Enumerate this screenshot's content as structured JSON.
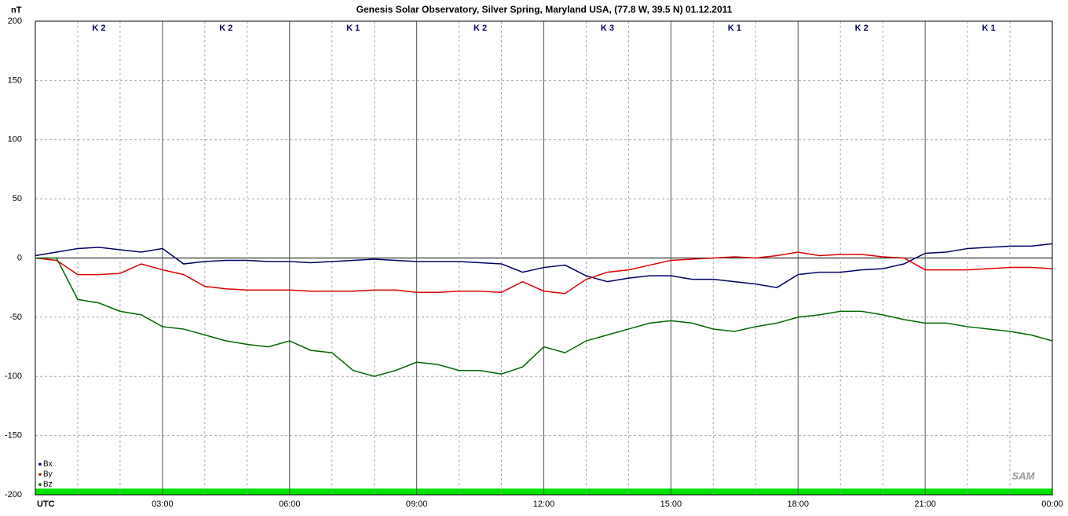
{
  "chart_data": {
    "type": "line",
    "title": "Genesis Solar Observatory, Silver Spring, Maryland USA, (77.8 W, 39.5 N)  01.12.2011",
    "y_label": "nT",
    "logo": "SAM",
    "annotations": [
      "K 2",
      "K 2",
      "K 1",
      "K 2",
      "K 3",
      "K 1",
      "K 2",
      "K 1"
    ],
    "x": [
      0,
      0.5,
      1,
      1.5,
      2,
      2.5,
      3,
      3.5,
      4,
      4.5,
      5,
      5.5,
      6,
      6.5,
      7,
      7.5,
      8,
      8.5,
      9,
      9.5,
      10,
      10.5,
      11,
      11.5,
      12,
      12.5,
      13,
      13.5,
      14,
      14.5,
      15,
      15.5,
      16,
      16.5,
      17,
      17.5,
      18,
      18.5,
      19,
      19.5,
      20,
      20.5,
      21,
      21.5,
      22,
      22.5,
      23,
      23.5,
      24
    ],
    "series": [
      {
        "name": "Bx",
        "color": "#000066",
        "values": [
          2,
          5,
          8,
          9,
          7,
          5,
          8,
          -5,
          -3,
          -2,
          -2,
          -3,
          -3,
          -4,
          -3,
          -2,
          -1,
          -2,
          -3,
          -3,
          -3,
          -4,
          -5,
          -12,
          -8,
          -6,
          -15,
          -20,
          -17,
          -15,
          -15,
          -18,
          -18,
          -20,
          -22,
          -25,
          -14,
          -12,
          -12,
          -10,
          -9,
          -5,
          4,
          5,
          8,
          9,
          10,
          10,
          12
        ]
      },
      {
        "name": "By",
        "color": "#dd0000",
        "values": [
          0,
          -2,
          -14,
          -14,
          -13,
          -5,
          -10,
          -14,
          -24,
          -26,
          -27,
          -27,
          -27,
          -28,
          -28,
          -28,
          -27,
          -27,
          -29,
          -29,
          -28,
          -28,
          -29,
          -20,
          -28,
          -30,
          -18,
          -12,
          -10,
          -6,
          -2,
          -1,
          0,
          1,
          0,
          2,
          5,
          2,
          3,
          3,
          1,
          0,
          -10,
          -10,
          -10,
          -9,
          -8,
          -8,
          -9
        ]
      },
      {
        "name": "Bz",
        "color": "#006600",
        "values": [
          0,
          0,
          -35,
          -38,
          -45,
          -48,
          -58,
          -60,
          -65,
          -70,
          -73,
          -75,
          -70,
          -78,
          -80,
          -95,
          -100,
          -95,
          -88,
          -90,
          -95,
          -95,
          -98,
          -92,
          -75,
          -80,
          -70,
          -65,
          -60,
          -55,
          -53,
          -55,
          -60,
          -62,
          -58,
          -55,
          -50,
          -48,
          -45,
          -45,
          -48,
          -52,
          -55,
          -55,
          -58,
          -60,
          -62,
          -65,
          -70
        ]
      }
    ],
    "xlim": [
      0,
      24
    ],
    "xticks": [
      {
        "value": 0,
        "label": "UTC"
      },
      {
        "value": 3,
        "label": "03:00"
      },
      {
        "value": 6,
        "label": "06:00"
      },
      {
        "value": 9,
        "label": "09:00"
      },
      {
        "value": 12,
        "label": "12:00"
      },
      {
        "value": 15,
        "label": "15:00"
      },
      {
        "value": 18,
        "label": "18:00"
      },
      {
        "value": 21,
        "label": "21:00"
      },
      {
        "value": 24,
        "label": "00:00"
      }
    ],
    "xminor": [
      1,
      2,
      4,
      5,
      7,
      8,
      10,
      11,
      13,
      14,
      16,
      17,
      19,
      20,
      22,
      23
    ],
    "ylim": [
      -200,
      200
    ],
    "yticks": [
      -200,
      -150,
      -100,
      -50,
      0,
      50,
      100,
      150,
      200
    ],
    "grid": true
  }
}
